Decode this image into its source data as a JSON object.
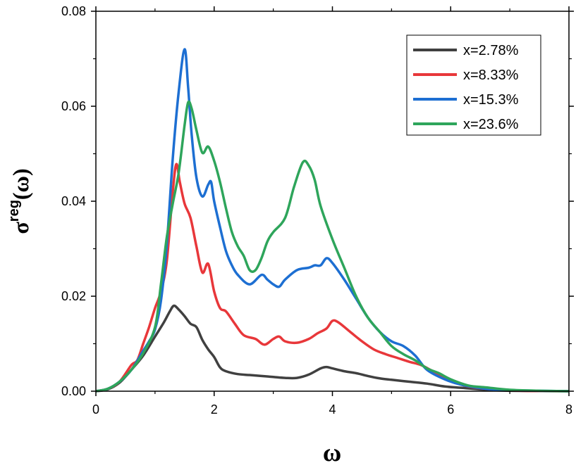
{
  "chart_data": {
    "type": "line",
    "xlabel": "ω",
    "ylabel_main": "σ",
    "ylabel_sup": "reg",
    "ylabel_arg": "(ω)",
    "xlim": [
      0,
      8
    ],
    "ylim": [
      0,
      0.08
    ],
    "xticks": [
      0,
      2,
      4,
      6,
      8
    ],
    "xtick_labels": [
      "0",
      "2",
      "4",
      "6",
      "8"
    ],
    "yticks": [
      0,
      0.02,
      0.04,
      0.06,
      0.08
    ],
    "ytick_labels": [
      "0.00",
      "0.02",
      "0.04",
      "0.06",
      "0.08"
    ],
    "grid": false,
    "legend_position": "top-right",
    "series": [
      {
        "name": "x=2.78%",
        "color": "#404040",
        "points": [
          [
            0,
            0
          ],
          [
            0.2,
            0.0004
          ],
          [
            0.4,
            0.0018
          ],
          [
            0.6,
            0.0045
          ],
          [
            0.8,
            0.0075
          ],
          [
            1.0,
            0.0115
          ],
          [
            1.15,
            0.0145
          ],
          [
            1.25,
            0.0168
          ],
          [
            1.32,
            0.018
          ],
          [
            1.4,
            0.0172
          ],
          [
            1.5,
            0.0158
          ],
          [
            1.6,
            0.0142
          ],
          [
            1.7,
            0.0135
          ],
          [
            1.8,
            0.0108
          ],
          [
            1.9,
            0.0088
          ],
          [
            2.0,
            0.0072
          ],
          [
            2.1,
            0.005
          ],
          [
            2.2,
            0.0042
          ],
          [
            2.4,
            0.0036
          ],
          [
            2.6,
            0.0034
          ],
          [
            2.8,
            0.0032
          ],
          [
            3.0,
            0.003
          ],
          [
            3.2,
            0.0028
          ],
          [
            3.4,
            0.0028
          ],
          [
            3.6,
            0.0035
          ],
          [
            3.8,
            0.0048
          ],
          [
            3.9,
            0.0051
          ],
          [
            4.0,
            0.0048
          ],
          [
            4.2,
            0.0042
          ],
          [
            4.4,
            0.0038
          ],
          [
            4.6,
            0.0032
          ],
          [
            4.8,
            0.0027
          ],
          [
            5.0,
            0.0024
          ],
          [
            5.3,
            0.002
          ],
          [
            5.6,
            0.0016
          ],
          [
            5.9,
            0.001
          ],
          [
            6.2,
            0.0007
          ],
          [
            6.6,
            0.0003
          ],
          [
            7.0,
            0.0001
          ],
          [
            8.0,
            0
          ]
        ]
      },
      {
        "name": "x=8.33%",
        "color": "#e8373a",
        "points": [
          [
            0,
            0
          ],
          [
            0.2,
            0.0005
          ],
          [
            0.4,
            0.002
          ],
          [
            0.6,
            0.0055
          ],
          [
            0.7,
            0.0065
          ],
          [
            0.8,
            0.01
          ],
          [
            0.9,
            0.0135
          ],
          [
            1.0,
            0.0175
          ],
          [
            1.1,
            0.021
          ],
          [
            1.2,
            0.0275
          ],
          [
            1.3,
            0.042
          ],
          [
            1.36,
            0.0478
          ],
          [
            1.42,
            0.044
          ],
          [
            1.5,
            0.0395
          ],
          [
            1.6,
            0.0365
          ],
          [
            1.7,
            0.0305
          ],
          [
            1.8,
            0.025
          ],
          [
            1.9,
            0.0268
          ],
          [
            2.0,
            0.021
          ],
          [
            2.1,
            0.0175
          ],
          [
            2.2,
            0.0168
          ],
          [
            2.35,
            0.0142
          ],
          [
            2.5,
            0.0118
          ],
          [
            2.7,
            0.011
          ],
          [
            2.85,
            0.0098
          ],
          [
            3.0,
            0.011
          ],
          [
            3.1,
            0.0115
          ],
          [
            3.2,
            0.0105
          ],
          [
            3.4,
            0.0102
          ],
          [
            3.6,
            0.011
          ],
          [
            3.75,
            0.0122
          ],
          [
            3.9,
            0.0132
          ],
          [
            4.0,
            0.0148
          ],
          [
            4.1,
            0.0145
          ],
          [
            4.3,
            0.0125
          ],
          [
            4.5,
            0.0105
          ],
          [
            4.7,
            0.0088
          ],
          [
            4.9,
            0.0078
          ],
          [
            5.1,
            0.007
          ],
          [
            5.3,
            0.0062
          ],
          [
            5.5,
            0.0055
          ],
          [
            5.7,
            0.0042
          ],
          [
            6.0,
            0.0022
          ],
          [
            6.3,
            0.001
          ],
          [
            6.7,
            0.0004
          ],
          [
            7.2,
            0.0001
          ],
          [
            8.0,
            0
          ]
        ]
      },
      {
        "name": "x=15.3%",
        "color": "#1d6fd2",
        "points": [
          [
            0,
            0
          ],
          [
            0.2,
            0.0005
          ],
          [
            0.4,
            0.002
          ],
          [
            0.6,
            0.0045
          ],
          [
            0.8,
            0.0085
          ],
          [
            0.9,
            0.0105
          ],
          [
            1.0,
            0.013
          ],
          [
            1.1,
            0.019
          ],
          [
            1.2,
            0.031
          ],
          [
            1.3,
            0.049
          ],
          [
            1.4,
            0.063
          ],
          [
            1.5,
            0.072
          ],
          [
            1.56,
            0.064
          ],
          [
            1.62,
            0.054
          ],
          [
            1.7,
            0.045
          ],
          [
            1.8,
            0.041
          ],
          [
            1.9,
            0.0435
          ],
          [
            1.95,
            0.044
          ],
          [
            2.0,
            0.04
          ],
          [
            2.1,
            0.0345
          ],
          [
            2.2,
            0.0295
          ],
          [
            2.3,
            0.0265
          ],
          [
            2.4,
            0.0245
          ],
          [
            2.6,
            0.0225
          ],
          [
            2.8,
            0.0245
          ],
          [
            2.9,
            0.0235
          ],
          [
            3.0,
            0.0225
          ],
          [
            3.1,
            0.022
          ],
          [
            3.2,
            0.0235
          ],
          [
            3.4,
            0.0255
          ],
          [
            3.6,
            0.026
          ],
          [
            3.7,
            0.0265
          ],
          [
            3.8,
            0.0265
          ],
          [
            3.9,
            0.028
          ],
          [
            4.0,
            0.027
          ],
          [
            4.2,
            0.0235
          ],
          [
            4.4,
            0.0195
          ],
          [
            4.6,
            0.0155
          ],
          [
            4.8,
            0.0125
          ],
          [
            5.0,
            0.0105
          ],
          [
            5.2,
            0.0095
          ],
          [
            5.4,
            0.0075
          ],
          [
            5.6,
            0.0045
          ],
          [
            5.9,
            0.0025
          ],
          [
            6.2,
            0.0013
          ],
          [
            6.6,
            0.0005
          ],
          [
            7.0,
            0.0002
          ],
          [
            8.0,
            0
          ]
        ]
      },
      {
        "name": "x=23.6%",
        "color": "#2ea55b",
        "points": [
          [
            0,
            0
          ],
          [
            0.2,
            0.0005
          ],
          [
            0.4,
            0.002
          ],
          [
            0.6,
            0.0045
          ],
          [
            0.8,
            0.008
          ],
          [
            1.0,
            0.0135
          ],
          [
            1.1,
            0.0225
          ],
          [
            1.2,
            0.0325
          ],
          [
            1.3,
            0.0395
          ],
          [
            1.4,
            0.046
          ],
          [
            1.5,
            0.056
          ],
          [
            1.56,
            0.0608
          ],
          [
            1.62,
            0.0595
          ],
          [
            1.7,
            0.055
          ],
          [
            1.8,
            0.0502
          ],
          [
            1.9,
            0.0515
          ],
          [
            2.0,
            0.0485
          ],
          [
            2.1,
            0.044
          ],
          [
            2.2,
            0.0385
          ],
          [
            2.3,
            0.0335
          ],
          [
            2.4,
            0.0305
          ],
          [
            2.5,
            0.0285
          ],
          [
            2.6,
            0.0255
          ],
          [
            2.7,
            0.0255
          ],
          [
            2.8,
            0.028
          ],
          [
            2.9,
            0.0315
          ],
          [
            3.0,
            0.0335
          ],
          [
            3.2,
            0.0365
          ],
          [
            3.35,
            0.043
          ],
          [
            3.5,
            0.0482
          ],
          [
            3.6,
            0.0475
          ],
          [
            3.7,
            0.0445
          ],
          [
            3.8,
            0.039
          ],
          [
            4.0,
            0.032
          ],
          [
            4.2,
            0.026
          ],
          [
            4.4,
            0.02
          ],
          [
            4.6,
            0.0155
          ],
          [
            4.8,
            0.0125
          ],
          [
            5.0,
            0.0095
          ],
          [
            5.2,
            0.0078
          ],
          [
            5.4,
            0.0065
          ],
          [
            5.6,
            0.0048
          ],
          [
            5.8,
            0.0038
          ],
          [
            6.0,
            0.0025
          ],
          [
            6.3,
            0.0012
          ],
          [
            6.6,
            0.0008
          ],
          [
            7.0,
            0.0003
          ],
          [
            7.5,
            0.0001
          ],
          [
            8.0,
            0
          ]
        ]
      }
    ]
  }
}
